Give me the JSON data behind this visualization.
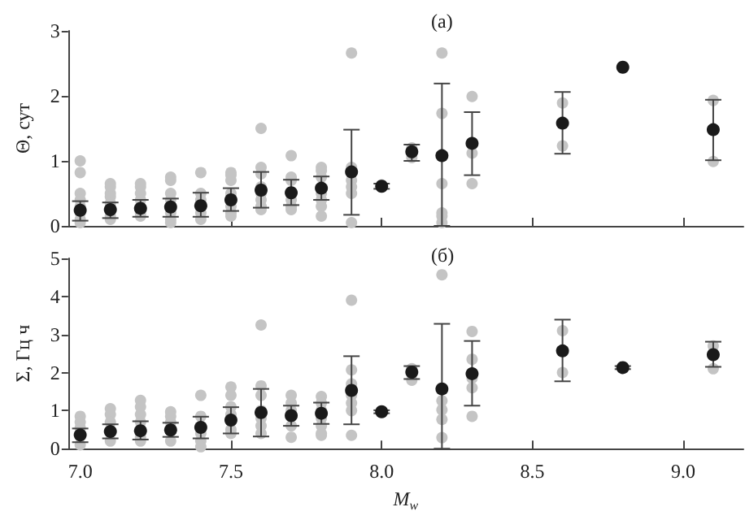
{
  "chart_data": [
    {
      "type": "scatter",
      "title": "(а)",
      "ylabel": "Θ, сут",
      "xlim": [
        6.96,
        9.2
      ],
      "xticks": [
        7,
        7.5,
        8,
        8.5,
        9
      ],
      "ylim": [
        0,
        3
      ],
      "yticks": [
        0,
        1,
        2,
        3
      ],
      "tick_labels": "y",
      "grid": false,
      "marker": "circle",
      "series": [
        {
          "color": "#c4c4c4",
          "x": [
            7,
            7,
            7,
            7,
            7,
            7,
            7,
            7,
            7.1,
            7.1,
            7.1,
            7.1,
            7.1,
            7.1,
            7.1,
            7.2,
            7.2,
            7.2,
            7.2,
            7.2,
            7.2,
            7.3,
            7.3,
            7.3,
            7.3,
            7.3,
            7.3,
            7.3,
            7.4,
            7.4,
            7.4,
            7.4,
            7.4,
            7.5,
            7.5,
            7.5,
            7.5,
            7.5,
            7.5,
            7.5,
            7.6,
            7.6,
            7.6,
            7.6,
            7.6,
            7.6,
            7.6,
            7.6,
            7.7,
            7.7,
            7.7,
            7.7,
            7.7,
            7.7,
            7.8,
            7.8,
            7.8,
            7.8,
            7.8,
            7.8,
            7.8,
            7.9,
            7.9,
            7.9,
            7.9,
            7.9,
            7.9,
            8,
            8.1,
            8.1,
            8.2,
            8.2,
            8.2,
            8.2,
            8.2,
            8.2,
            8.3,
            8.3,
            8.3,
            8.6,
            8.6,
            9.1,
            9.1
          ],
          "values": [
            1.0,
            0.82,
            0.5,
            0.4,
            0.3,
            0.2,
            0.1,
            0.05,
            0.65,
            0.6,
            0.5,
            0.45,
            0.35,
            0.15,
            0.1,
            0.65,
            0.6,
            0.5,
            0.4,
            0.2,
            0.15,
            0.75,
            0.7,
            0.5,
            0.4,
            0.2,
            0.1,
            0.05,
            0.82,
            0.5,
            0.4,
            0.2,
            0.1,
            0.82,
            0.78,
            0.7,
            0.5,
            0.3,
            0.2,
            0.15,
            1.5,
            0.9,
            0.8,
            0.6,
            0.5,
            0.4,
            0.3,
            0.25,
            1.08,
            0.75,
            0.7,
            0.4,
            0.3,
            0.25,
            0.9,
            0.85,
            0.75,
            0.5,
            0.4,
            0.3,
            0.15,
            2.66,
            0.9,
            0.7,
            0.6,
            0.5,
            0.05,
            0.63,
            1.2,
            1.05,
            2.66,
            1.73,
            0.65,
            0.2,
            0.15,
            0.05,
            1.99,
            1.12,
            0.65,
            1.89,
            1.23,
            1.93,
            0.99
          ]
        },
        {
          "color": "#1a1a1a",
          "x": [
            7,
            7.1,
            7.2,
            7.3,
            7.4,
            7.5,
            7.6,
            7.7,
            7.8,
            7.9,
            8,
            8.1,
            8.2,
            8.3,
            8.6,
            8.8,
            9.1
          ],
          "values": [
            0.24,
            0.25,
            0.27,
            0.29,
            0.31,
            0.4,
            0.55,
            0.51,
            0.58,
            0.83,
            0.61,
            1.14,
            1.08,
            1.27,
            1.58,
            2.44,
            1.48
          ],
          "errors": [
            [
              0.08,
              0.38
            ],
            [
              0.12,
              0.36
            ],
            [
              0.14,
              0.4
            ],
            [
              0.14,
              0.42
            ],
            [
              0.14,
              0.51
            ],
            [
              0.23,
              0.58
            ],
            [
              0.28,
              0.83
            ],
            [
              0.32,
              0.71
            ],
            [
              0.4,
              0.76
            ],
            [
              0.17,
              1.48
            ],
            [
              0.57,
              0.65
            ],
            [
              1.0,
              1.25
            ],
            [
              0,
              2.19
            ],
            [
              0.78,
              1.75
            ],
            [
              1.11,
              2.06
            ],
            null,
            [
              1.01,
              1.94
            ]
          ]
        }
      ]
    },
    {
      "type": "scatter",
      "title": "(б)",
      "ylabel": "Σ, Гц ч",
      "xlabel": "M$_{w}$",
      "xlim": [
        6.96,
        9.2
      ],
      "xticks": [
        {
          "value": 7,
          "label": "7.0"
        },
        {
          "value": 7.5,
          "label": "7.5"
        },
        {
          "value": 8,
          "label": "8.0"
        },
        {
          "value": 8.5,
          "label": "8.5"
        },
        {
          "value": 9,
          "label": "9.0"
        }
      ],
      "ylim": [
        0,
        5
      ],
      "yticks": [
        0,
        1,
        2,
        3,
        4,
        5
      ],
      "grid": false,
      "marker": "circle",
      "series": [
        {
          "color": "#c4c4c4",
          "x": [
            7,
            7,
            7,
            7,
            7.1,
            7.1,
            7.1,
            7.1,
            7.2,
            7.2,
            7.2,
            7.2,
            7.2,
            7.2,
            7.3,
            7.3,
            7.3,
            7.3,
            7.4,
            7.4,
            7.4,
            7.4,
            7.4,
            7.5,
            7.5,
            7.5,
            7.5,
            7.5,
            7.5,
            7.6,
            7.6,
            7.6,
            7.6,
            7.6,
            7.6,
            7.6,
            7.7,
            7.7,
            7.7,
            7.7,
            7.7,
            7.8,
            7.8,
            7.8,
            7.8,
            7.8,
            7.8,
            7.8,
            7.9,
            7.9,
            7.9,
            7.9,
            7.9,
            7.9,
            7.9,
            8.1,
            8.1,
            8.2,
            8.2,
            8.2,
            8.2,
            8.2,
            8.3,
            8.3,
            8.3,
            8.3,
            8.3,
            8.6,
            8.6,
            9.1,
            9.1
          ],
          "values": [
            0.85,
            0.7,
            0.55,
            0.1,
            1.05,
            0.9,
            0.7,
            0.2,
            1.27,
            1.1,
            0.9,
            0.7,
            0.3,
            0.2,
            0.97,
            0.85,
            0.7,
            0.2,
            1.4,
            0.85,
            0.4,
            0.2,
            0.05,
            1.62,
            1.4,
            1.1,
            0.9,
            0.5,
            0.4,
            3.25,
            1.65,
            1.4,
            1.0,
            0.8,
            0.6,
            0.4,
            1.4,
            1.2,
            1.0,
            0.6,
            0.3,
            1.37,
            1.2,
            1.0,
            0.8,
            0.6,
            0.4,
            0.35,
            3.9,
            2.07,
            1.7,
            1.4,
            1.2,
            1.0,
            0.35,
            2.1,
            1.8,
            4.57,
            1.26,
            1.02,
            0.77,
            0.29,
            3.08,
            2.35,
            1.85,
            1.6,
            0.85,
            3.1,
            2.0,
            2.7,
            2.1
          ]
        },
        {
          "color": "#1a1a1a",
          "x": [
            7,
            7.1,
            7.2,
            7.3,
            7.4,
            7.5,
            7.6,
            7.7,
            7.8,
            7.9,
            8,
            8.1,
            8.2,
            8.3,
            8.6,
            8.8,
            9.1
          ],
          "values": [
            0.36,
            0.45,
            0.47,
            0.49,
            0.56,
            0.75,
            0.95,
            0.87,
            0.93,
            1.53,
            0.97,
            2.01,
            1.57,
            1.97,
            2.57,
            2.13,
            2.47
          ],
          "errors": [
            [
              0.17,
              0.53
            ],
            [
              0.27,
              0.64
            ],
            [
              0.24,
              0.72
            ],
            [
              0.31,
              0.68
            ],
            [
              0.27,
              0.84
            ],
            [
              0.4,
              1.09
            ],
            [
              0.32,
              1.57
            ],
            [
              0.6,
              1.13
            ],
            [
              0.65,
              1.21
            ],
            [
              0.64,
              2.43
            ],
            [
              0.93,
              1.01
            ],
            [
              1.83,
              2.17
            ],
            [
              0,
              3.28
            ],
            [
              1.13,
              2.83
            ],
            [
              1.77,
              3.39
            ],
            [
              2.09,
              2.17
            ],
            [
              2.15,
              2.81
            ]
          ]
        }
      ]
    }
  ]
}
